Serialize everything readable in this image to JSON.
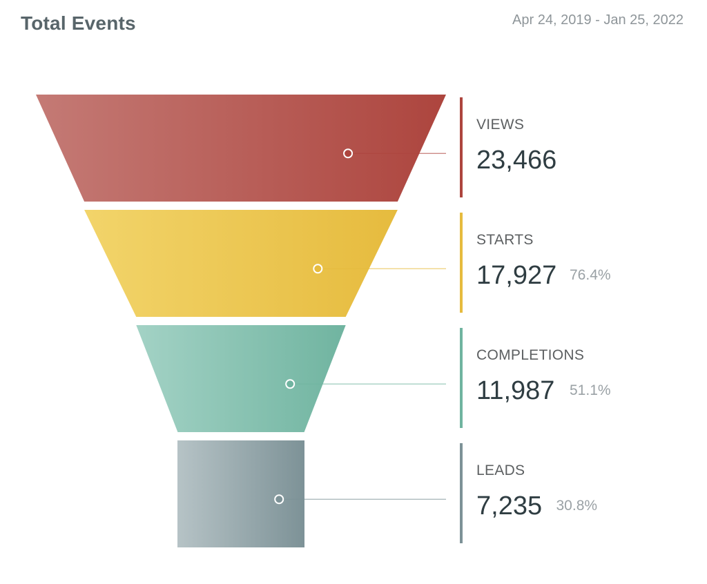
{
  "header": {
    "title": "Total Events",
    "date_range": "Apr 24, 2019 - Jan 25, 2022"
  },
  "chart_data": {
    "type": "funnel",
    "stages": [
      {
        "label": "VIEWS",
        "value": 23466,
        "display": "23,466",
        "percent": null,
        "color_start": "#c47a75",
        "color_end": "#ad453e"
      },
      {
        "label": "STARTS",
        "value": 17927,
        "display": "17,927",
        "percent": "76.4%",
        "color_start": "#f2d46a",
        "color_end": "#e6bb3e"
      },
      {
        "label": "COMPLETIONS",
        "value": 11987,
        "display": "11,987",
        "percent": "51.1%",
        "color_start": "#a3d2c5",
        "color_end": "#70b4a0"
      },
      {
        "label": "LEADS",
        "value": 7235,
        "display": "7,235",
        "percent": "30.8%",
        "color_start": "#b6c3c6",
        "color_end": "#7d9297"
      }
    ]
  }
}
